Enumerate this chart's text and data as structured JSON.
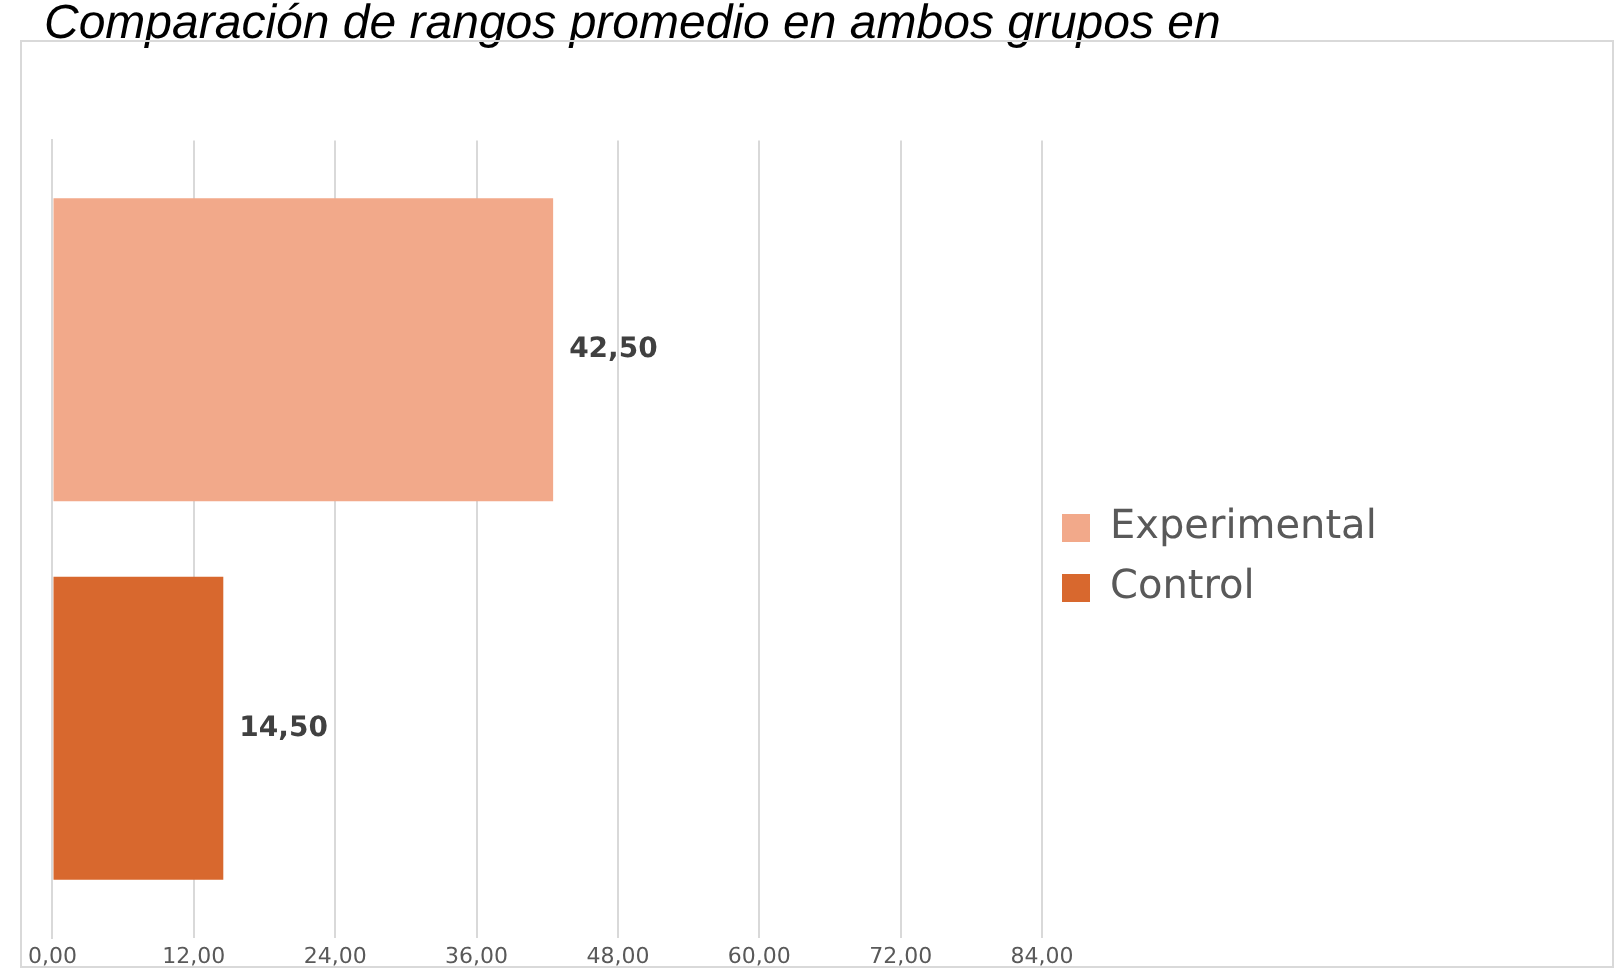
{
  "chart_data": {
    "type": "bar",
    "title": "Comparación de rangos promedio en ambos grupos en",
    "orientation": "horizontal",
    "categories": [
      null
    ],
    "series": [
      {
        "name": "Experimental",
        "color": "#f2a98a",
        "values": [
          42.5
        ],
        "value_labels": [
          "42,50"
        ]
      },
      {
        "name": "Control",
        "color": "#d8682e",
        "values": [
          14.5
        ],
        "value_labels": [
          "14,50"
        ]
      }
    ],
    "xlim": [
      0,
      84
    ],
    "xticks": [
      {
        "value": 0,
        "label": "0,00"
      },
      {
        "value": 12,
        "label": "12,00"
      },
      {
        "value": 24,
        "label": "24,00"
      },
      {
        "value": 36,
        "label": "36,00"
      },
      {
        "value": 48,
        "label": "48,00"
      },
      {
        "value": 60,
        "label": "60,00"
      },
      {
        "value": 72,
        "label": "72,00"
      },
      {
        "value": 84,
        "label": "84,00"
      }
    ],
    "grid": "x",
    "legend": "right"
  }
}
